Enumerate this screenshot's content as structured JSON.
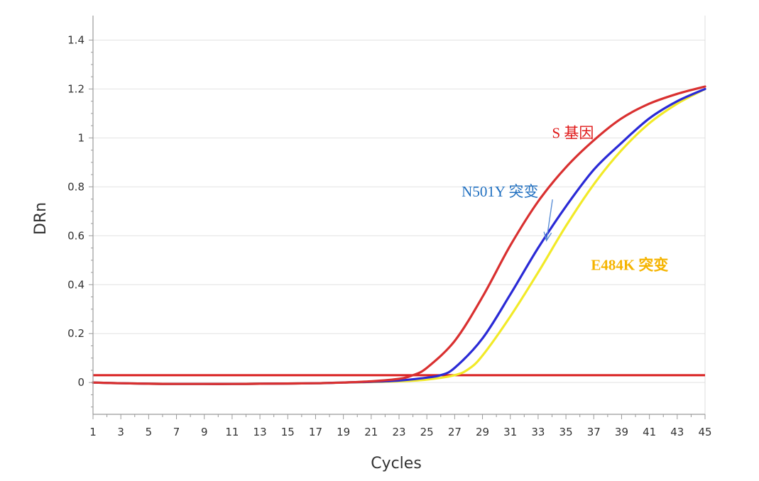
{
  "chart_data": {
    "type": "line",
    "xlabel": "Cycles",
    "ylabel": "DRn",
    "xlim": [
      1,
      45
    ],
    "ylim": [
      -0.13,
      1.5
    ],
    "x_ticks": [
      1,
      3,
      5,
      7,
      9,
      11,
      13,
      15,
      17,
      19,
      21,
      23,
      25,
      27,
      29,
      31,
      33,
      35,
      37,
      39,
      41,
      43,
      45
    ],
    "y_ticks": [
      0,
      0.2,
      0.4,
      0.6,
      0.8,
      1,
      1.2,
      1.4
    ],
    "y_tick_labels": [
      "0",
      "0.2",
      "0.4",
      "0.6",
      "0.8",
      "1",
      "1.2",
      "1.4"
    ],
    "grid": true,
    "threshold": {
      "value": 0.03,
      "color": "#d92020"
    },
    "series": [
      {
        "name": "S 基因",
        "color": "#d93030",
        "x": [
          1,
          3,
          5,
          7,
          9,
          11,
          13,
          15,
          17,
          19,
          21,
          23,
          24,
          25,
          27,
          29,
          31,
          33,
          35,
          37,
          39,
          41,
          43,
          45
        ],
        "y": [
          0,
          -0.003,
          -0.005,
          -0.006,
          -0.006,
          -0.006,
          -0.005,
          -0.004,
          -0.003,
          0,
          0.005,
          0.015,
          0.03,
          0.06,
          0.17,
          0.35,
          0.56,
          0.74,
          0.88,
          0.99,
          1.08,
          1.14,
          1.18,
          1.21
        ]
      },
      {
        "name": "N501Y 突变",
        "color": "#2a2ad6",
        "x": [
          1,
          3,
          5,
          7,
          9,
          11,
          13,
          15,
          17,
          19,
          21,
          23,
          25,
          26,
          27,
          29,
          31,
          33,
          35,
          37,
          39,
          41,
          43,
          45
        ],
        "y": [
          0,
          -0.003,
          -0.005,
          -0.006,
          -0.006,
          -0.006,
          -0.005,
          -0.004,
          -0.003,
          0,
          0.003,
          0.008,
          0.02,
          0.03,
          0.06,
          0.18,
          0.36,
          0.55,
          0.72,
          0.87,
          0.98,
          1.08,
          1.15,
          1.2
        ]
      },
      {
        "name": "E484K 突变",
        "color": "#f2ea28",
        "x": [
          1,
          3,
          5,
          7,
          9,
          11,
          13,
          15,
          17,
          19,
          21,
          23,
          25,
          27,
          28,
          29,
          31,
          33,
          35,
          37,
          39,
          41,
          43,
          45
        ],
        "y": [
          0,
          -0.003,
          -0.005,
          -0.006,
          -0.006,
          -0.006,
          -0.005,
          -0.004,
          -0.003,
          0,
          0.002,
          0.005,
          0.012,
          0.03,
          0.055,
          0.11,
          0.27,
          0.45,
          0.64,
          0.81,
          0.95,
          1.06,
          1.14,
          1.2
        ]
      }
    ],
    "annotations": [
      {
        "text": "S  基因",
        "color": "#e01818",
        "bold": false,
        "x": 34,
        "y": 1.0
      },
      {
        "text": "N501Y 突变",
        "color": "#1f6fc0",
        "bold": false,
        "x": 27.5,
        "y": 0.76,
        "arrow_to": [
          33.6,
          0.58
        ]
      },
      {
        "text": "E484K 突变",
        "color": "#f5b400",
        "bold": true,
        "x": 36.8,
        "y": 0.46
      }
    ]
  }
}
